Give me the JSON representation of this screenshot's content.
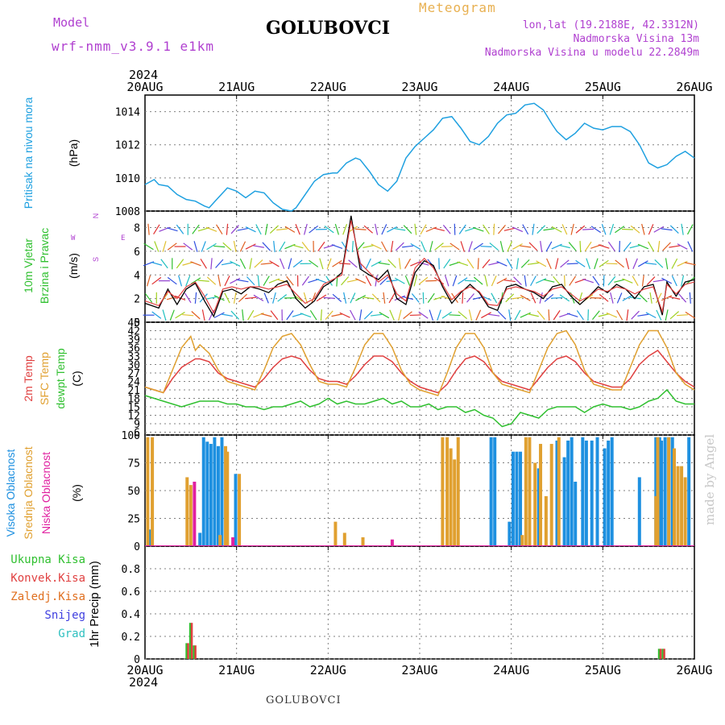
{
  "header": {
    "model_label": "Model",
    "model_name": "wrf-nmm_v3.9.1 e1km",
    "station": "GOLUBOVCI",
    "meteogram": "Meteogram",
    "lonlat": "lon,lat (19.2188E, 42.3312N)",
    "elevation": "Nadmorska Visina 13m",
    "model_elevation": "Nadmorska Visina u modelu 22.2849m",
    "year": "2024",
    "footer_station": "GOLUBOVCI",
    "signature": "made by Angel"
  },
  "colors": {
    "pressure": "#1ea0e0",
    "temp2m": "#e04040",
    "sfc": "#e0a030",
    "dewpt": "#30c030",
    "high": "#1e90e0",
    "mid": "#e0a030",
    "low": "#e020a0",
    "total": "#30c030",
    "conv": "#e04040",
    "frozen": "#e07020",
    "snow": "#4040e0",
    "grad": "#30c0c0",
    "grid": "#808080"
  },
  "chart_data": [
    {
      "type": "line",
      "panel": "pressure",
      "ylabel_left": "Pritisak na nivou mora",
      "ylabel": "(hPa)",
      "ylim": [
        1008,
        1015
      ],
      "yticks": [
        1008,
        1010,
        1012,
        1014
      ],
      "x_labels": [
        "20AUG",
        "21AUG",
        "22AUG",
        "23AUG",
        "24AUG",
        "25AUG",
        "26AUG"
      ],
      "x_days": [
        0,
        1,
        2,
        3,
        4,
        5,
        6
      ],
      "grid": true,
      "series": [
        {
          "color_key": "pressure",
          "x": [
            0,
            0.1,
            0.15,
            0.25,
            0.35,
            0.45,
            0.55,
            0.65,
            0.7,
            0.8,
            0.9,
            1.0,
            1.1,
            1.2,
            1.3,
            1.4,
            1.5,
            1.6,
            1.65,
            1.75,
            1.85,
            1.95,
            2.05,
            2.1,
            2.2,
            2.3,
            2.35,
            2.45,
            2.55,
            2.65,
            2.75,
            2.85,
            2.95,
            3.05,
            3.15,
            3.25,
            3.35,
            3.45,
            3.55,
            3.65,
            3.75,
            3.85,
            3.95,
            4.05,
            4.15,
            4.25,
            4.35,
            4.45,
            4.5,
            4.6,
            4.7,
            4.8,
            4.9,
            5.0,
            5.1,
            5.2,
            5.3,
            5.4,
            5.5,
            5.6,
            5.7,
            5.8,
            5.9,
            6.0
          ],
          "y": [
            1009.6,
            1009.9,
            1009.6,
            1009.5,
            1009.0,
            1008.7,
            1008.6,
            1008.3,
            1008.2,
            1008.8,
            1009.4,
            1009.2,
            1008.8,
            1009.2,
            1009.1,
            1008.5,
            1008.1,
            1008.0,
            1008.2,
            1009.0,
            1009.8,
            1010.2,
            1010.3,
            1010.3,
            1010.9,
            1011.2,
            1011.1,
            1010.4,
            1009.6,
            1009.2,
            1009.8,
            1011.2,
            1011.9,
            1012.4,
            1012.9,
            1013.6,
            1013.7,
            1013.0,
            1012.2,
            1012.0,
            1012.5,
            1013.3,
            1013.8,
            1013.9,
            1014.4,
            1014.5,
            1014.1,
            1013.2,
            1012.8,
            1012.3,
            1012.7,
            1013.3,
            1013.0,
            1012.9,
            1013.1,
            1013.1,
            1012.8,
            1012.0,
            1010.9,
            1010.6,
            1010.8,
            1011.3,
            1011.6,
            1011.2
          ]
        }
      ]
    },
    {
      "type": "line",
      "panel": "wind",
      "ylabel_left": [
        "10m Vjetar",
        "Brzina i Pravac"
      ],
      "ylabel": "(m/s)",
      "ylim": [
        0,
        9.4
      ],
      "yticks": [
        0,
        2,
        4,
        6,
        8
      ],
      "compass": {
        "n": "N",
        "s": "S",
        "w": "W",
        "e": "E"
      },
      "grid": true,
      "series": [
        {
          "name": "speed",
          "color": "#000000",
          "x": [
            0,
            0.15,
            0.25,
            0.35,
            0.45,
            0.55,
            0.65,
            0.75,
            0.85,
            0.95,
            1.05,
            1.15,
            1.25,
            1.35,
            1.45,
            1.55,
            1.65,
            1.75,
            1.85,
            1.95,
            2.05,
            2.15,
            2.25,
            2.35,
            2.45,
            2.55,
            2.65,
            2.75,
            2.85,
            2.95,
            3.05,
            3.15,
            3.25,
            3.35,
            3.45,
            3.55,
            3.65,
            3.75,
            3.85,
            3.95,
            4.05,
            4.15,
            4.25,
            4.35,
            4.45,
            4.55,
            4.65,
            4.75,
            4.85,
            4.95,
            5.05,
            5.15,
            5.25,
            5.35,
            5.45,
            5.55,
            5.65,
            5.7,
            5.8,
            5.9,
            6.0
          ],
          "y": [
            1.6,
            1.2,
            2.8,
            1.5,
            2.8,
            3.3,
            1.8,
            0.5,
            2.6,
            2.8,
            2.4,
            3.0,
            2.8,
            2.5,
            3.2,
            3.5,
            2.0,
            1.2,
            1.8,
            3.0,
            3.5,
            4.2,
            9.0,
            4.5,
            4.0,
            3.6,
            4.4,
            2.0,
            1.5,
            4.2,
            5.2,
            4.8,
            3.0,
            1.6,
            2.5,
            3.2,
            2.5,
            1.3,
            1.0,
            3.0,
            3.2,
            2.8,
            2.5,
            2.0,
            3.0,
            3.2,
            2.2,
            1.5,
            2.2,
            3.0,
            2.5,
            3.2,
            2.8,
            2.0,
            3.0,
            3.2,
            0.6,
            3.4,
            2.2,
            3.4,
            3.6
          ]
        },
        {
          "name": "gust",
          "color": "#e04040",
          "x": [
            0,
            0.15,
            0.25,
            0.35,
            0.45,
            0.55,
            0.65,
            0.75,
            0.85,
            0.95,
            1.05,
            1.15,
            1.25,
            1.35,
            1.45,
            1.55,
            1.65,
            1.75,
            1.85,
            1.95,
            2.05,
            2.15,
            2.25,
            2.35,
            2.45,
            2.55,
            2.65,
            2.75,
            2.85,
            2.95,
            3.05,
            3.15,
            3.25,
            3.35,
            3.45,
            3.55,
            3.65,
            3.75,
            3.85,
            3.95,
            4.05,
            4.15,
            4.25,
            4.35,
            4.45,
            4.55,
            4.65,
            4.75,
            4.85,
            4.95,
            5.05,
            5.15,
            5.25,
            5.35,
            5.45,
            5.55,
            5.65,
            5.7,
            5.8,
            5.9,
            6.0
          ],
          "y": [
            1.8,
            1.4,
            2.6,
            2.0,
            3.0,
            3.4,
            2.2,
            0.8,
            2.8,
            3.0,
            2.8,
            3.0,
            3.0,
            2.8,
            3.0,
            3.2,
            2.4,
            1.6,
            2.0,
            3.2,
            3.6,
            4.0,
            8.6,
            5.0,
            4.2,
            3.4,
            4.0,
            2.4,
            1.8,
            4.6,
            5.4,
            4.6,
            3.2,
            1.9,
            2.6,
            3.0,
            2.6,
            1.5,
            1.4,
            2.8,
            3.0,
            2.8,
            2.6,
            2.2,
            2.8,
            3.0,
            2.4,
            1.8,
            2.2,
            2.8,
            2.6,
            3.0,
            2.8,
            2.4,
            2.8,
            3.0,
            0.9,
            3.2,
            2.4,
            3.2,
            3.4
          ]
        }
      ]
    },
    {
      "type": "line",
      "panel": "temperature",
      "ylabel_left": [
        "2m Temp",
        "SFC Temp",
        "dewpt Temp"
      ],
      "ylabel": "(C)",
      "ylim": [
        5,
        45
      ],
      "yticks": [
        6,
        9,
        12,
        15,
        18,
        21,
        24,
        27,
        30,
        33,
        36,
        39,
        42,
        45
      ],
      "grid": true,
      "series": [
        {
          "name": "2m Temp",
          "color_key": "temp2m",
          "x": [
            0,
            0.1,
            0.2,
            0.3,
            0.4,
            0.5,
            0.55,
            0.6,
            0.7,
            0.8,
            0.9,
            1.0,
            1.1,
            1.2,
            1.3,
            1.4,
            1.5,
            1.6,
            1.7,
            1.8,
            1.9,
            2.0,
            2.1,
            2.2,
            2.3,
            2.4,
            2.5,
            2.6,
            2.7,
            2.8,
            2.9,
            3.0,
            3.1,
            3.2,
            3.3,
            3.4,
            3.5,
            3.6,
            3.7,
            3.8,
            3.9,
            4.0,
            4.1,
            4.2,
            4.3,
            4.4,
            4.5,
            4.6,
            4.7,
            4.8,
            4.9,
            5.0,
            5.1,
            5.2,
            5.3,
            5.4,
            5.5,
            5.6,
            5.7,
            5.8,
            5.9,
            6.0
          ],
          "y": [
            22,
            21,
            20,
            25,
            29,
            31,
            32,
            32,
            31,
            27,
            25,
            24,
            23,
            22,
            25,
            29,
            32,
            33,
            32,
            28,
            25,
            24,
            24,
            23,
            26,
            30,
            33,
            33,
            31,
            27,
            24,
            22,
            21,
            20,
            23,
            28,
            32,
            33,
            31,
            27,
            24,
            23,
            22,
            21,
            25,
            29,
            32,
            33,
            31,
            27,
            24,
            23,
            22,
            22,
            25,
            30,
            33,
            35,
            31,
            27,
            24,
            22
          ]
        },
        {
          "name": "SFC Temp",
          "color_key": "sfc",
          "x": [
            0,
            0.1,
            0.2,
            0.3,
            0.4,
            0.5,
            0.55,
            0.6,
            0.7,
            0.8,
            0.9,
            1.0,
            1.1,
            1.2,
            1.3,
            1.4,
            1.5,
            1.6,
            1.7,
            1.8,
            1.9,
            2.0,
            2.1,
            2.2,
            2.3,
            2.4,
            2.5,
            2.6,
            2.7,
            2.8,
            2.9,
            3.0,
            3.1,
            3.2,
            3.3,
            3.4,
            3.5,
            3.6,
            3.7,
            3.8,
            3.9,
            4.0,
            4.1,
            4.2,
            4.3,
            4.4,
            4.5,
            4.6,
            4.7,
            4.8,
            4.9,
            5.0,
            5.1,
            5.2,
            5.3,
            5.4,
            5.5,
            5.6,
            5.7,
            5.8,
            5.9,
            6.0
          ],
          "y": [
            22,
            21,
            20,
            28,
            36,
            40,
            35,
            37,
            34,
            28,
            24,
            23,
            22,
            21,
            28,
            36,
            40,
            41,
            37,
            30,
            24,
            23,
            23,
            22,
            29,
            37,
            41,
            41,
            36,
            28,
            23,
            21,
            20,
            19,
            27,
            36,
            41,
            41,
            36,
            27,
            23,
            22,
            21,
            20,
            28,
            36,
            41,
            42,
            37,
            28,
            23,
            22,
            21,
            21,
            29,
            37,
            42,
            42,
            36,
            27,
            23,
            21
          ]
        },
        {
          "name": "dewpt Temp",
          "color_key": "dewpt",
          "x": [
            0,
            0.1,
            0.2,
            0.3,
            0.4,
            0.5,
            0.6,
            0.7,
            0.8,
            0.9,
            1.0,
            1.1,
            1.2,
            1.3,
            1.4,
            1.5,
            1.6,
            1.7,
            1.8,
            1.9,
            2.0,
            2.1,
            2.2,
            2.3,
            2.4,
            2.5,
            2.6,
            2.7,
            2.8,
            2.9,
            3.0,
            3.1,
            3.2,
            3.3,
            3.4,
            3.5,
            3.6,
            3.7,
            3.8,
            3.9,
            4.0,
            4.1,
            4.2,
            4.3,
            4.4,
            4.5,
            4.6,
            4.7,
            4.8,
            4.9,
            5.0,
            5.1,
            5.2,
            5.3,
            5.4,
            5.5,
            5.6,
            5.7,
            5.8,
            5.9,
            6.0
          ],
          "y": [
            19,
            18,
            17,
            16,
            15,
            16,
            17,
            17,
            17,
            16,
            16,
            15,
            15,
            14,
            15,
            15,
            16,
            17,
            15,
            16,
            18,
            16,
            17,
            16,
            16,
            17,
            18,
            16,
            17,
            15,
            15,
            16,
            14,
            15,
            15,
            13,
            14,
            12,
            11,
            8,
            9,
            13,
            12,
            11,
            14,
            15,
            15,
            15,
            13,
            15,
            16,
            15,
            15,
            14,
            15,
            17,
            18,
            21,
            17,
            16,
            16
          ]
        }
      ]
    },
    {
      "type": "bar",
      "panel": "cloud",
      "ylabel_left": [
        "Visoka Oblacnost",
        "Srednja Oblacnost",
        "Niska Oblacnost"
      ],
      "ylabel": "(%)",
      "ylim": [
        0,
        100
      ],
      "yticks": [
        0,
        25,
        50,
        75,
        100
      ],
      "grid": true,
      "series": [
        {
          "name": "Visoka Oblacnost",
          "color_key": "high",
          "x": [
            0.05,
            0.6,
            0.64,
            0.68,
            0.72,
            0.76,
            0.8,
            0.84,
            0.99,
            3.78,
            3.82,
            3.98,
            4.02,
            4.06,
            4.1,
            4.3,
            4.5,
            4.58,
            4.62,
            4.66,
            4.7,
            4.78,
            4.82,
            4.88,
            4.94,
            5.02,
            5.06,
            5.1,
            5.4,
            5.58,
            5.62,
            5.64,
            5.68,
            5.72,
            5.76,
            5.94
          ],
          "values": [
            15,
            12,
            98,
            94,
            92,
            98,
            90,
            98,
            65,
            98,
            98,
            22,
            85,
            85,
            85,
            70,
            95,
            80,
            95,
            98,
            58,
            98,
            95,
            95,
            98,
            88,
            95,
            98,
            62,
            98,
            98,
            95,
            98,
            98,
            98,
            98
          ]
        },
        {
          "name": "Srednja Oblacnost",
          "color_key": "mid",
          "x": [
            0.03,
            0.08,
            0.46,
            0.5,
            0.82,
            0.88,
            0.9,
            1.03,
            2.08,
            2.18,
            2.38,
            3.25,
            3.3,
            3.34,
            3.38,
            3.42,
            4.12,
            4.16,
            4.2,
            4.26,
            4.32,
            4.38,
            4.44,
            4.52,
            5.58,
            5.6,
            5.72,
            5.78,
            5.82,
            5.86,
            5.9
          ],
          "values": [
            98,
            98,
            62,
            55,
            10,
            90,
            85,
            65,
            22,
            12,
            8,
            98,
            98,
            88,
            78,
            98,
            10,
            98,
            98,
            75,
            92,
            45,
            92,
            98,
            45,
            98,
            98,
            88,
            72,
            72,
            62
          ]
        },
        {
          "name": "Niska Oblacnost",
          "color_key": "low",
          "x": [
            0.54,
            0.96,
            2.7
          ],
          "values": [
            58,
            8,
            6
          ]
        }
      ]
    },
    {
      "type": "bar",
      "panel": "precip",
      "ylabel": "1hr Precip (mm)",
      "ylim": [
        0,
        1.0
      ],
      "yticks": [
        0,
        0.2,
        0.4,
        0.6,
        0.8
      ],
      "legend": [
        "Ukupna Kisa",
        "Konvek.Kisa",
        "Zaledj.Kisa",
        "Snijeg",
        "Grad"
      ],
      "grid": true,
      "series": [
        {
          "name": "Ukupna Kisa",
          "color_key": "total",
          "x": [
            0.46,
            0.5,
            0.54,
            5.62,
            5.66
          ],
          "values": [
            0.14,
            0.32,
            0.12,
            0.09,
            0.09
          ]
        },
        {
          "name": "Konvek.Kisa",
          "color_key": "conv",
          "x": [
            0.46,
            0.5,
            0.54,
            5.62,
            5.66
          ],
          "values": [
            0.14,
            0.32,
            0.12,
            0.09,
            0.09
          ]
        }
      ]
    }
  ]
}
